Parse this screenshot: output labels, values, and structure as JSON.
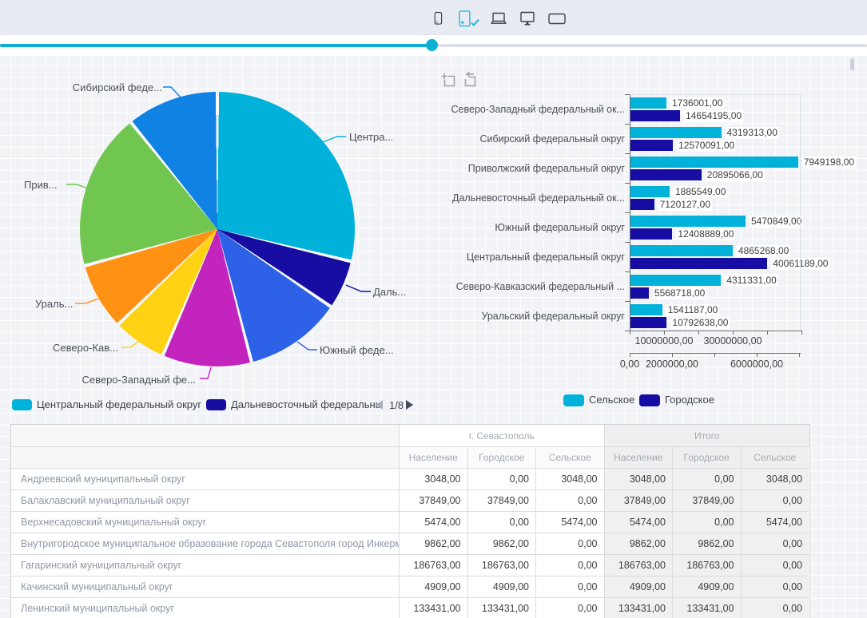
{
  "palette": {
    "accent": "#0cb0d4",
    "rural": "#00B2D9",
    "urban": "#170DA3"
  },
  "toolbar": {
    "devices": [
      {
        "label": "phone",
        "selected": false
      },
      {
        "label": "tablet",
        "selected": true
      },
      {
        "label": "laptop",
        "selected": false
      },
      {
        "label": "desktop-monitor",
        "selected": false
      },
      {
        "label": "tv",
        "selected": false
      }
    ]
  },
  "slider": {
    "value_percent": 49.8
  },
  "pie_widget": {
    "callouts": [
      "Сибирский феде...",
      "Центра...",
      "Прив...",
      "Ураль...",
      "Северо-Кав...",
      "Северо-Западный фе...",
      "Южный феде...",
      "Даль..."
    ],
    "callout_slice": [
      7,
      0,
      6,
      5,
      4,
      3,
      2,
      1
    ],
    "legend": {
      "items": [
        {
          "label": "Центральный федеральный округ",
          "color": "#00B2D9"
        },
        {
          "label": "Дальневосточный федеральны",
          "color": "#170DA3"
        }
      ],
      "page": "1/8"
    }
  },
  "bar_widget": {
    "urban_axis": [
      "10000000,00",
      "30000000,00"
    ],
    "rural_axis": [
      "0,00",
      "2000000,00",
      "6000000,00"
    ],
    "legend": [
      {
        "label": "Сельское",
        "color": "#00B2D9"
      },
      {
        "label": "Городское",
        "color": "#170DA3"
      }
    ]
  },
  "table": {
    "groups": [
      {
        "label": "г. Севастополь"
      },
      {
        "label": "Итого"
      }
    ],
    "columns": [
      "Население",
      "Городское",
      "Сельское",
      "Население",
      "Городское",
      "Сельское"
    ],
    "rows": [
      {
        "name": "Андреевский муниципальный округ",
        "sev": [
          "3048,00",
          "0,00",
          "3048,00"
        ],
        "itogo": [
          "3048,00",
          "0,00",
          "3048,00"
        ]
      },
      {
        "name": "Балаклавский муниципальный округ",
        "sev": [
          "37849,00",
          "37849,00",
          "0,00"
        ],
        "itogo": [
          "37849,00",
          "37849,00",
          "0,00"
        ]
      },
      {
        "name": "Верхнесадовский муниципальный округ",
        "sev": [
          "5474,00",
          "0,00",
          "5474,00"
        ],
        "itogo": [
          "5474,00",
          "0,00",
          "5474,00"
        ]
      },
      {
        "name": "Внутригородское муниципальное образование города Севастополя город Инкерман",
        "sev": [
          "9862,00",
          "9862,00",
          "0,00"
        ],
        "itogo": [
          "9862,00",
          "9862,00",
          "0,00"
        ]
      },
      {
        "name": "Гагаринский муниципальный округ",
        "sev": [
          "186763,00",
          "186763,00",
          "0,00"
        ],
        "itogo": [
          "186763,00",
          "186763,00",
          "0,00"
        ]
      },
      {
        "name": "Качинский муниципальный округ",
        "sev": [
          "4909,00",
          "4909,00",
          "0,00"
        ],
        "itogo": [
          "4909,00",
          "4909,00",
          "0,00"
        ]
      },
      {
        "name": "Ленинский муниципальный округ",
        "sev": [
          "133431,00",
          "133431,00",
          "0,00"
        ],
        "itogo": [
          "133431,00",
          "133431,00",
          "0,00"
        ]
      }
    ]
  },
  "chart_data": [
    {
      "type": "pie",
      "title": "",
      "labels": [
        "Центральный федеральный округ",
        "Дальневосточный федеральный округ",
        "Южный федеральный округ",
        "Северо-Западный федеральный округ",
        "Северо-Кавказский федеральный округ",
        "Уральский федеральный округ",
        "Приволжский федеральный округ",
        "Сибирский федеральный округ"
      ],
      "values": [
        44926457,
        9005676,
        17879738,
        16390196,
        9880049,
        12333825,
        28844264,
        16889404
      ],
      "colors": [
        "#00B2D9",
        "#170DA3",
        "#2D62E8",
        "#C324BE",
        "#FFD213",
        "#FF9214",
        "#70C64F",
        "#0F82E4"
      ],
      "legend_position": "bottom",
      "legend_page": "1/8"
    },
    {
      "type": "bar",
      "orientation": "horizontal",
      "categories": [
        "Северо-Западный федеральный ок...",
        "Сибирский федеральный округ",
        "Приволжский федеральный округ",
        "Дальневосточный федеральный ок...",
        "Южный федеральный округ",
        "Центральный федеральный округ",
        "Северо-Кавказский федеральный ...",
        "Уральский федеральный округ"
      ],
      "series": [
        {
          "name": "Сельское",
          "color": "#00B2D9",
          "values": [
            1736001,
            4319313,
            7949198,
            1885549,
            5470849,
            4865268,
            4311331,
            1541187
          ],
          "value_labels": [
            "1736001,00",
            "4319313,00",
            "7949198,00",
            "1885549,00",
            "5470849,00",
            "4865268,00",
            "4311331,00",
            "1541187,00"
          ],
          "axis_ticks": [
            "0,00",
            "2000000,00",
            "6000000,00"
          ],
          "axis_range": [
            0,
            8000000
          ]
        },
        {
          "name": "Городское",
          "color": "#170DA3",
          "values": [
            14654195,
            12570091,
            20895066,
            7120127,
            12408889,
            40061189,
            5568718,
            10792638
          ],
          "value_labels": [
            "14654195,00",
            "12570091,00",
            "20895066,00",
            "7120127,00",
            "12408889,00",
            "40061189,00",
            "5568718,00",
            "10792638,00"
          ],
          "axis_ticks": [
            "10000000,00",
            "30000000,00"
          ],
          "axis_range": [
            0,
            50000000
          ]
        }
      ],
      "legend_position": "bottom"
    }
  ]
}
